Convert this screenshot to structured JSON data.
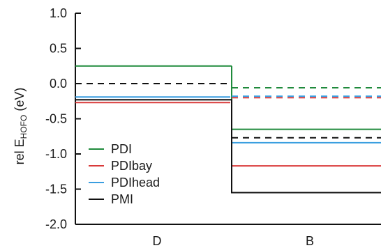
{
  "chart_data": {
    "type": "line",
    "title": "",
    "ylabel": {
      "prefix": "rel E",
      "subscript": "HOFO",
      "suffix": " (eV)"
    },
    "xlabel": "",
    "categories": [
      "D",
      "B"
    ],
    "ylim": [
      -2.0,
      1.0
    ],
    "yticks": [
      1.0,
      0.5,
      0.0,
      -0.5,
      -1.0,
      -1.5,
      -2.0
    ],
    "ytick_labels": [
      "1.0",
      "0.5",
      "0.0",
      "-0.5",
      "-1.0",
      "-1.5",
      "-2.0"
    ],
    "grid": false,
    "legend_position": "bottom-left",
    "series": [
      {
        "name": "PDI",
        "color": "#1f8a3c",
        "D": 0.25,
        "B_solid": -0.65,
        "B_dashed": -0.06
      },
      {
        "name": "PDIbay",
        "color": "#d93a3a",
        "D": -0.27,
        "B_solid": -1.17,
        "B_dashed": -0.2
      },
      {
        "name": "PDIhead",
        "color": "#3a9ee0",
        "D": -0.19,
        "B_solid": -0.84,
        "B_dashed": -0.18
      },
      {
        "name": "PMI",
        "color": "#111111",
        "D": -0.23,
        "B_solid": -1.55,
        "B_dashed": -0.77
      }
    ],
    "reference_line": {
      "value": 0.0,
      "color": "#111111"
    }
  }
}
